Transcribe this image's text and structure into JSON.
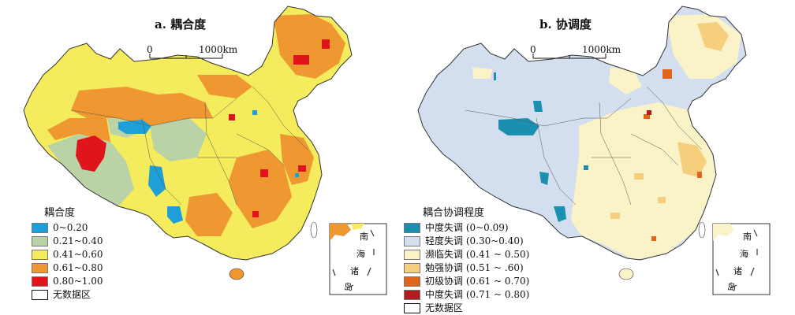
{
  "panel_a": {
    "title": "a. 耦合度",
    "scale": {
      "zero": "0",
      "dist": "1000km"
    },
    "legend_title": "耦合度",
    "legend": [
      {
        "label": "0~0.20",
        "color": "#1f9fd8"
      },
      {
        "label": "0.21~0.40",
        "color": "#b9d3a6"
      },
      {
        "label": "0.41~0.60",
        "color": "#f4ec5c"
      },
      {
        "label": "0.61~0.80",
        "color": "#ef9731"
      },
      {
        "label": "0.80~1.00",
        "color": "#e0141b"
      },
      {
        "label": "无数据区",
        "color": "#ffffff"
      }
    ],
    "inset_labels": [
      "南",
      "海",
      "诸",
      "岛"
    ]
  },
  "panel_b": {
    "title": "b. 协调度",
    "scale": {
      "zero": "0",
      "dist": "1000km"
    },
    "legend_title": "耦合协调程度",
    "legend": [
      {
        "label": "中度失调 (0~0.09)",
        "color": "#1a8fb0"
      },
      {
        "label": "轻度失调 (0.30~0.40)",
        "color": "#d3dfee"
      },
      {
        "label": "濒临失调 (0.41 ~ 0.50)",
        "color": "#faf3c8"
      },
      {
        "label": "勉强协调 (0.51 ~ .60)",
        "color": "#f6cf7c"
      },
      {
        "label": "初级协调 (0.61 ~ 0.70)",
        "color": "#e2651e"
      },
      {
        "label": "中度失调 (0.71 ~ 0.80)",
        "color": "#b21c1c"
      },
      {
        "label": "无数据区",
        "color": "#ffffff"
      }
    ],
    "inset_labels": [
      "南",
      "海",
      "诸",
      "岛"
    ]
  }
}
